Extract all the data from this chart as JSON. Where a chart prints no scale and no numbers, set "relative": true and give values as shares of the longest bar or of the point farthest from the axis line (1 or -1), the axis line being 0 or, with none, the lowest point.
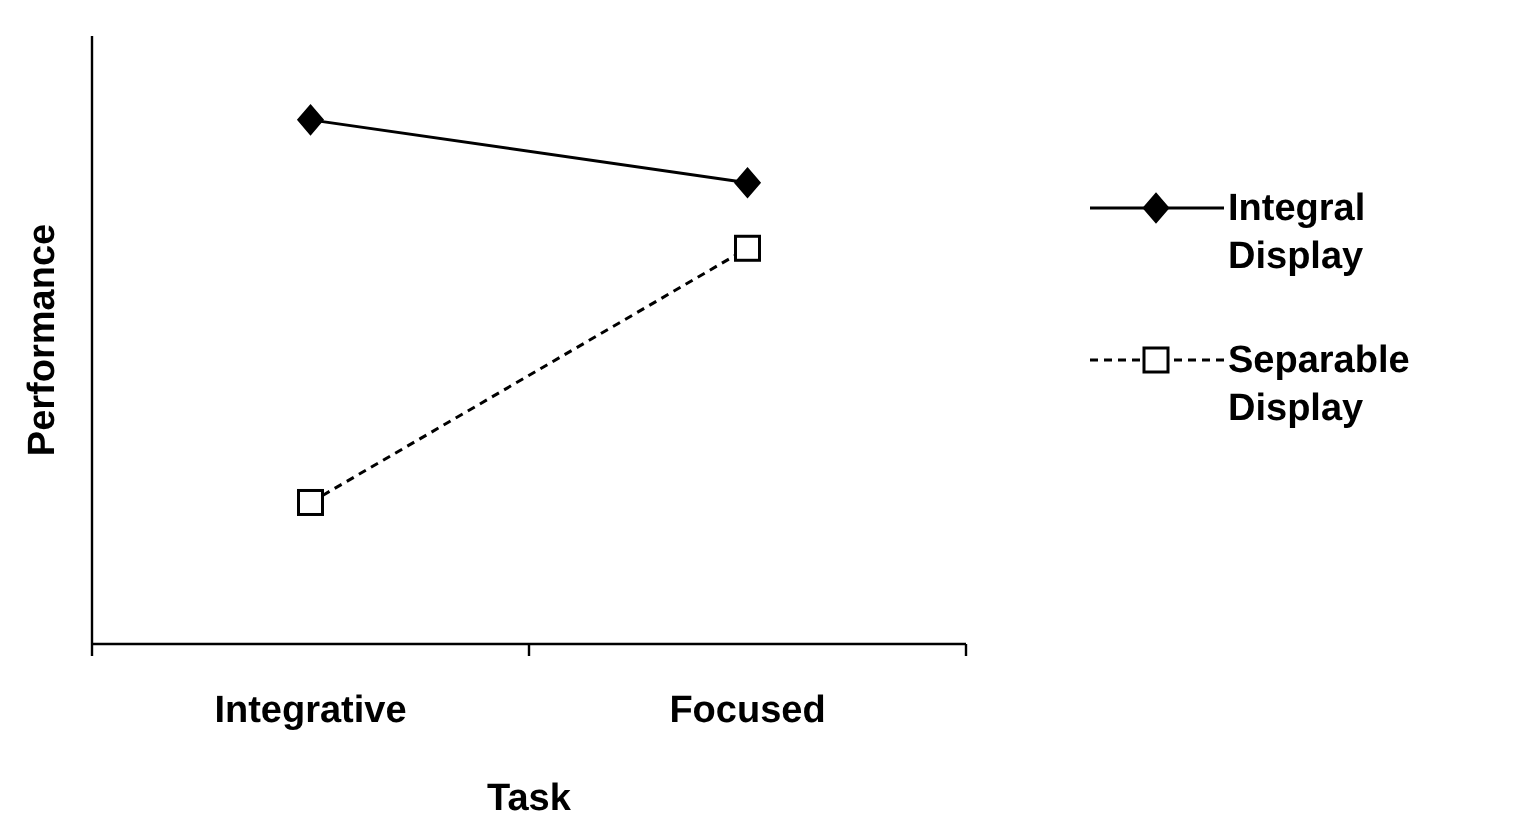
{
  "chart_data": {
    "type": "line",
    "xlabel": "Task",
    "ylabel": "Performance",
    "categories": [
      "Integrative",
      "Focused"
    ],
    "relative": true,
    "legend": "right",
    "series": [
      {
        "name": "Integral Display",
        "color": "#000000",
        "values": [
          1,
          0.88
        ],
        "marker": "diamond",
        "line_style": "solid"
      },
      {
        "name": "Separable Display",
        "color": "#000000",
        "values": [
          0.27,
          0.755
        ],
        "marker": "square",
        "line_style": "dashed"
      }
    ]
  }
}
